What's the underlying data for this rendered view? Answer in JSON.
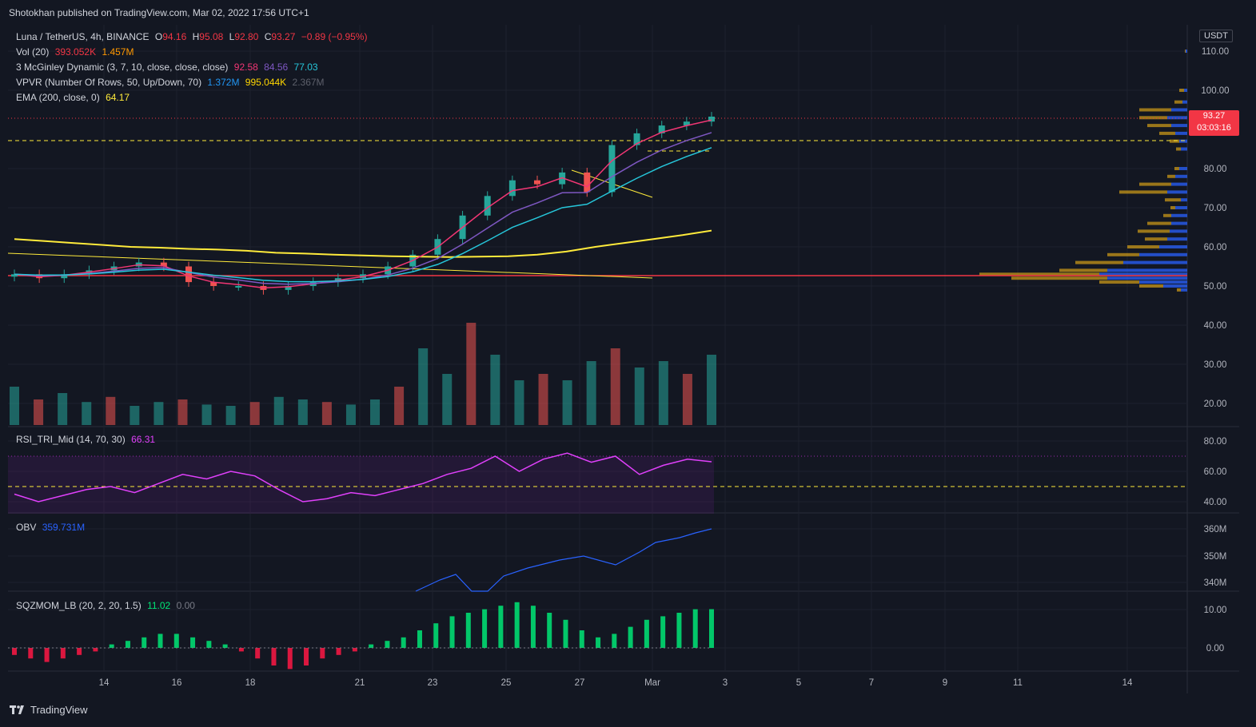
{
  "publisher": "Shotokhan published on TradingView.com, Mar 02, 2022 17:56 UTC+1",
  "symbol": {
    "name": "Luna / TetherUS, 4h, BINANCE",
    "o_label": "O",
    "o": "94.16",
    "h_label": "H",
    "h": "95.08",
    "l_label": "L",
    "l": "92.80",
    "c_label": "C",
    "c": "93.27",
    "change": "−0.89 (−0.95%)"
  },
  "indicators": {
    "vol": {
      "label": "Vol (20)",
      "v1": "393.052K",
      "v2": "1.457M"
    },
    "mcginley": {
      "label": "3 McGinley Dynamic (3, 7, 10, close, close, close)",
      "v1": "92.58",
      "v2": "84.56",
      "v3": "77.03"
    },
    "vpvr": {
      "label": "VPVR (Number Of Rows, 50, Up/Down, 70)",
      "v1": "1.372M",
      "v2": "995.044K",
      "v3": "2.367M"
    },
    "ema": {
      "label": "EMA (200, close, 0)",
      "v1": "64.17"
    },
    "rsi": {
      "label": "RSI_TRI_Mid (14, 70, 30)",
      "v1": "66.31"
    },
    "obv": {
      "label": "OBV",
      "v1": "359.731M"
    },
    "sqz": {
      "label": "SQZMOM_LB (20, 2, 20, 1.5)",
      "v1": "11.02",
      "v2": "0.00"
    }
  },
  "currency": "USDT",
  "price_tag": {
    "price": "93.27",
    "countdown": "03:03:16"
  },
  "price_axis": [
    "110.00",
    "100.00",
    "80.00",
    "70.00",
    "60.00",
    "50.00",
    "40.00",
    "30.00",
    "20.00"
  ],
  "rsi_axis": [
    "80.00",
    "60.00",
    "40.00"
  ],
  "obv_axis": [
    "360M",
    "350M",
    "340M"
  ],
  "sqz_axis": [
    "10.00",
    "0.00"
  ],
  "time_axis": [
    "14",
    "16",
    "18",
    "21",
    "23",
    "25",
    "27",
    "Mar",
    "3",
    "5",
    "7",
    "9",
    "11",
    "14"
  ],
  "brand": "TradingView",
  "colors": {
    "bg": "#131722",
    "up": "#26a69a",
    "down": "#ef5350",
    "ema200": "#ffeb3b",
    "mcg_fast": "#f23674",
    "mcg_mid": "#7e57c2",
    "mcg_slow": "#26c6da",
    "rsi": "#e040fb",
    "obv": "#2962ff",
    "vpvr_up": "#2962ff",
    "vpvr_down": "#d4a017"
  },
  "chart_data": {
    "type": "candlestick",
    "series": [
      {
        "name": "Luna / TetherUS",
        "values": [
          53,
          52,
          53,
          54,
          55,
          56,
          55,
          51,
          50,
          50,
          49,
          50,
          51,
          52,
          53,
          55,
          58,
          62,
          68,
          73,
          77,
          76,
          79,
          74,
          86,
          89,
          91,
          92,
          93.27
        ]
      },
      {
        "name": "EMA (200, close, 0)",
        "values": [
          62,
          61.5,
          61,
          60.5,
          60,
          59.8,
          59.5,
          59.3,
          59,
          58.5,
          58.3,
          58,
          57.8,
          57.6,
          57.5,
          57.4,
          57.5,
          57.6,
          58,
          58.8,
          60,
          61,
          62,
          63,
          64.17
        ]
      }
    ]
  }
}
